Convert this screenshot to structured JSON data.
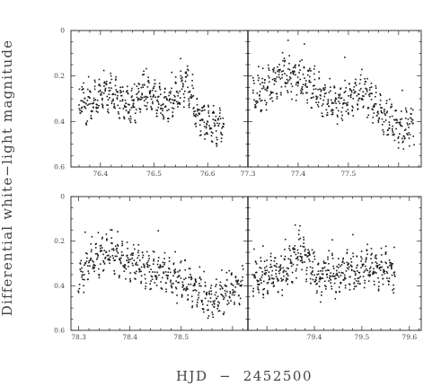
{
  "chart_data": {
    "type": "scatter",
    "ylabel": "Differential white−light magnitude",
    "xlabel": "HJD  −  2452500",
    "y_inverted": true,
    "grid": false,
    "legend": "none",
    "color": "#1a1a1a",
    "panels": [
      {
        "id": "top-left",
        "xlim": [
          76.345,
          76.675
        ],
        "ylim": [
          0,
          0.6
        ],
        "xticks": [
          "76.4",
          "76.5",
          "76.6"
        ],
        "yticks": [
          "0",
          "0.2",
          "0.4",
          "0.6"
        ],
        "x": [
          76.36,
          76.38,
          76.4,
          76.42,
          76.44,
          76.46,
          76.48,
          76.5,
          76.52,
          76.54,
          76.56,
          76.58,
          76.6,
          76.62,
          76.63
        ],
        "y": [
          0.31,
          0.33,
          0.29,
          0.27,
          0.31,
          0.34,
          0.26,
          0.29,
          0.33,
          0.3,
          0.22,
          0.37,
          0.41,
          0.42,
          0.4
        ]
      },
      {
        "id": "top-right",
        "xlim": [
          77.3,
          77.645
        ],
        "ylim": [
          0,
          0.6
        ],
        "xticks": [
          "77.3",
          "77.4",
          "77.5"
        ],
        "yticks": [],
        "x": [
          77.31,
          77.33,
          77.35,
          77.37,
          77.39,
          77.41,
          77.43,
          77.45,
          77.47,
          77.49,
          77.51,
          77.53,
          77.55,
          77.57,
          77.59,
          77.61,
          77.63
        ],
        "y": [
          0.3,
          0.27,
          0.23,
          0.19,
          0.2,
          0.22,
          0.25,
          0.3,
          0.32,
          0.31,
          0.29,
          0.27,
          0.32,
          0.38,
          0.41,
          0.44,
          0.4
        ]
      },
      {
        "id": "bottom-left",
        "xlim": [
          78.285,
          78.63
        ],
        "ylim": [
          0,
          0.6
        ],
        "xticks": [
          "78.3",
          "78.4",
          "78.5"
        ],
        "yticks": [
          "0",
          "0.2",
          "0.4",
          "0.6"
        ],
        "x": [
          78.3,
          78.32,
          78.34,
          78.36,
          78.38,
          78.4,
          78.42,
          78.44,
          78.46,
          78.48,
          78.5,
          78.52,
          78.54,
          78.56,
          78.58,
          78.6,
          78.62
        ],
        "y": [
          0.38,
          0.29,
          0.27,
          0.24,
          0.28,
          0.3,
          0.31,
          0.34,
          0.33,
          0.36,
          0.38,
          0.4,
          0.45,
          0.47,
          0.44,
          0.42,
          0.4
        ]
      },
      {
        "id": "bottom-right",
        "xlim": [
          79.26,
          79.625
        ],
        "ylim": [
          0,
          0.6
        ],
        "xticks": [
          "79.4",
          "79.5",
          "79.6"
        ],
        "yticks": [],
        "x": [
          79.27,
          79.29,
          79.31,
          79.33,
          79.35,
          79.37,
          79.39,
          79.41,
          79.43,
          79.45,
          79.47,
          79.49,
          79.51,
          79.53,
          79.55,
          79.57
        ],
        "y": [
          0.36,
          0.37,
          0.34,
          0.35,
          0.3,
          0.24,
          0.3,
          0.38,
          0.33,
          0.37,
          0.32,
          0.35,
          0.3,
          0.34,
          0.32,
          0.36
        ]
      }
    ]
  }
}
